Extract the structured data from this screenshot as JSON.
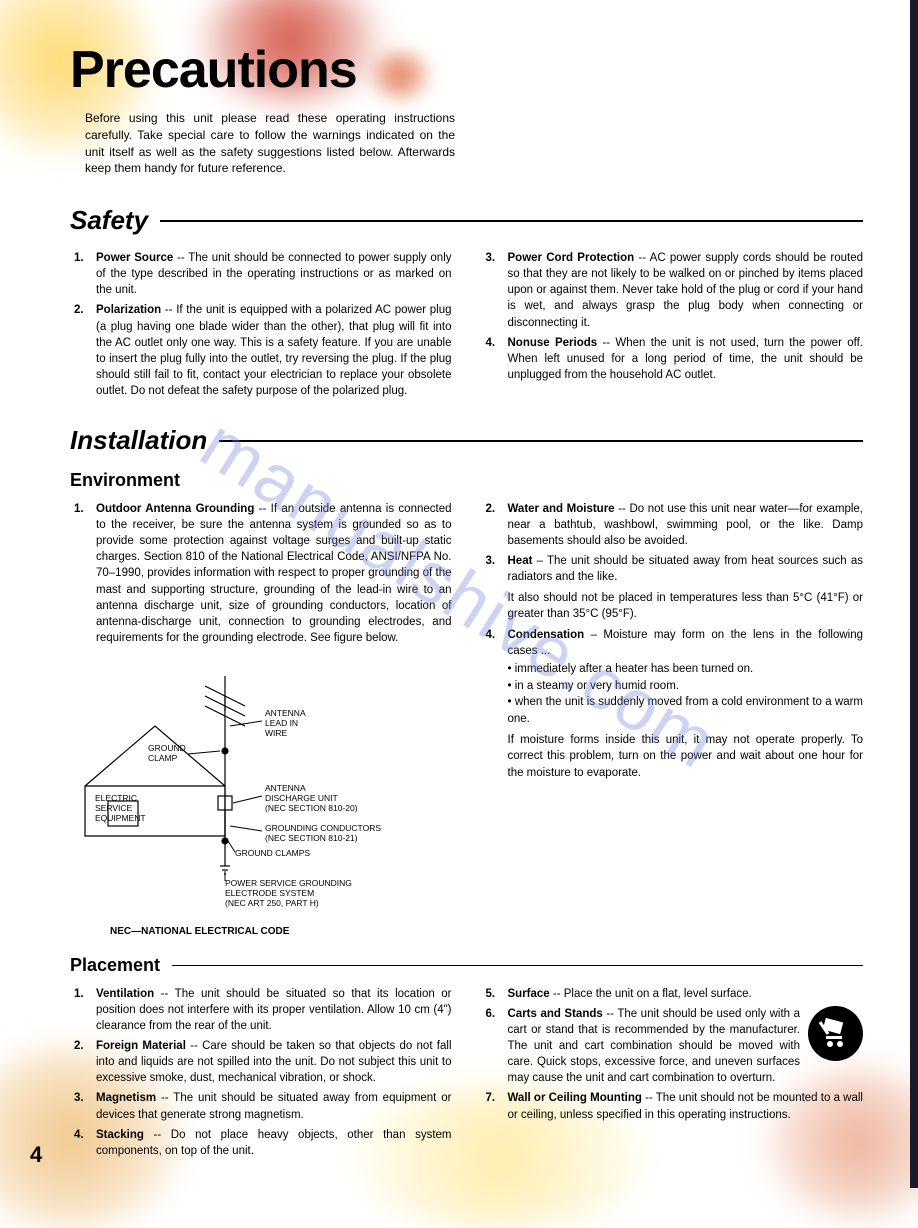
{
  "watermark": "manualshive.com",
  "page_number": "4",
  "title": "Precautions",
  "intro": "Before using this unit please read these operating instructions carefully. Take special care to follow the warnings indicated on the unit itself as well as the safety suggestions listed below. Afterwards keep them handy for future reference.",
  "safety": {
    "heading": "Safety",
    "left": [
      {
        "num": "1.",
        "title": "Power Source",
        "text": " -- The unit should be connected to power supply only of the type described in the operating instructions or as marked on the unit."
      },
      {
        "num": "2.",
        "title": "Polarization",
        "text": " -- If the unit is equipped with a polarized AC power plug (a plug having one blade wider than the other), that plug will fit into the AC outlet only one way. This is a safety feature. If you are unable to insert the plug fully into the outlet, try reversing the plug. If the plug should still fail to fit, contact your electrician to replace your obsolete outlet. Do not defeat the safety purpose of the polarized plug."
      }
    ],
    "right": [
      {
        "num": "3.",
        "title": "Power Cord Protection",
        "text": " -- AC power supply cords should be routed so that they are not likely to be walked on or pinched by items placed upon or against them. Never take hold of the plug or cord if your hand is wet, and always grasp the plug body when connecting or disconnecting it."
      },
      {
        "num": "4.",
        "title": "Nonuse Periods",
        "text": " -- When the unit is not used, turn the power off. When left unused for a long period of time, the unit should be unplugged from the household AC outlet."
      }
    ]
  },
  "installation": {
    "heading": "Installation",
    "env_heading": "Environment",
    "left": [
      {
        "num": "1.",
        "title": "Outdoor Antenna Grounding",
        "text": " -- If an outside antenna is connected to the receiver, be sure the antenna system is grounded so as to provide some protection against voltage surges and built-up static charges. Section 810 of the National Electrical Code, ANSI/NFPA No. 70–1990, provides information with respect to proper grounding of the mast and supporting structure, grounding of the lead-in wire to an antenna discharge unit, size of grounding conductors, location of antenna-discharge unit, connection to grounding electrodes, and requirements for the grounding electrode. See figure below."
      }
    ],
    "diagram": {
      "labels": {
        "antenna_lead": "ANTENNA LEAD IN WIRE",
        "ground_clamp": "GROUND CLAMP",
        "electric_service": "ELECTRIC SERVICE EQUIPMENT",
        "discharge_unit": "ANTENNA DISCHARGE UNIT (NEC SECTION 810-20)",
        "grounding_conductors": "GROUNDING CONDUCTORS (NEC SECTION 810-21)",
        "ground_clamps2": "GROUND CLAMPS",
        "power_service": "POWER SERVICE GROUNDING ELECTRODE SYSTEM (NEC ART 250, PART H)"
      },
      "nec_note": "NEC—NATIONAL ELECTRICAL CODE"
    },
    "right": [
      {
        "num": "2.",
        "title": "Water and Moisture",
        "text": " -- Do not use this unit near water—for example, near a bathtub, washbowl, swimming pool, or the like. Damp basements should also be avoided."
      },
      {
        "num": "3.",
        "title": "Heat",
        "text": " – The unit should be situated away from heat sources such as radiators and the like.",
        "follow": "It also should not be placed in temperatures less than 5°C (41°F) or greater than 35°C (95°F)."
      },
      {
        "num": "4.",
        "title": "Condensation",
        "text": " – Moisture may form on the lens in the following cases ...",
        "bullets": [
          "• immediately after a heater has been turned on.",
          "• in a steamy or very humid room.",
          "• when the unit is suddenly moved from a cold environment to a warm one."
        ],
        "follow": "If moisture forms inside this unit, it may not operate properly. To correct this problem, turn on the power and wait about one hour for the moisture to evaporate."
      }
    ]
  },
  "placement": {
    "heading": "Placement",
    "left": [
      {
        "num": "1.",
        "title": "Ventilation",
        "text": " -- The unit should be situated so that its location or position does not interfere with its proper ventilation. Allow 10 cm (4\") clearance from the rear of the unit."
      },
      {
        "num": "2.",
        "title": "Foreign Material",
        "text": " -- Care should be taken so that objects do not fall into and liquids are not spilled into the unit. Do not subject this unit to excessive smoke, dust, mechanical vibration, or shock."
      },
      {
        "num": "3.",
        "title": "Magnetism",
        "text": " -- The unit should be situated away from equipment or devices that generate strong magnetism."
      },
      {
        "num": "4.",
        "title": "Stacking",
        "text": " -- Do not place heavy objects, other than system components, on top of the unit."
      }
    ],
    "right": [
      {
        "num": "5.",
        "title": "Surface",
        "text": " -- Place the unit on a flat, level surface."
      },
      {
        "num": "6.",
        "title": "Carts and Stands",
        "text": " -- The unit should be used only with a cart or stand that is recommended by the manufacturer. The unit and cart combination should be moved with care. Quick stops, excessive force, and uneven surfaces may cause the unit and cart combination to overturn.",
        "has_icon": true
      },
      {
        "num": "7.",
        "title": "Wall or Ceiling Mounting",
        "text": " -- The unit should not be mounted to a wall or ceiling, unless specified in this operating instructions."
      }
    ]
  }
}
